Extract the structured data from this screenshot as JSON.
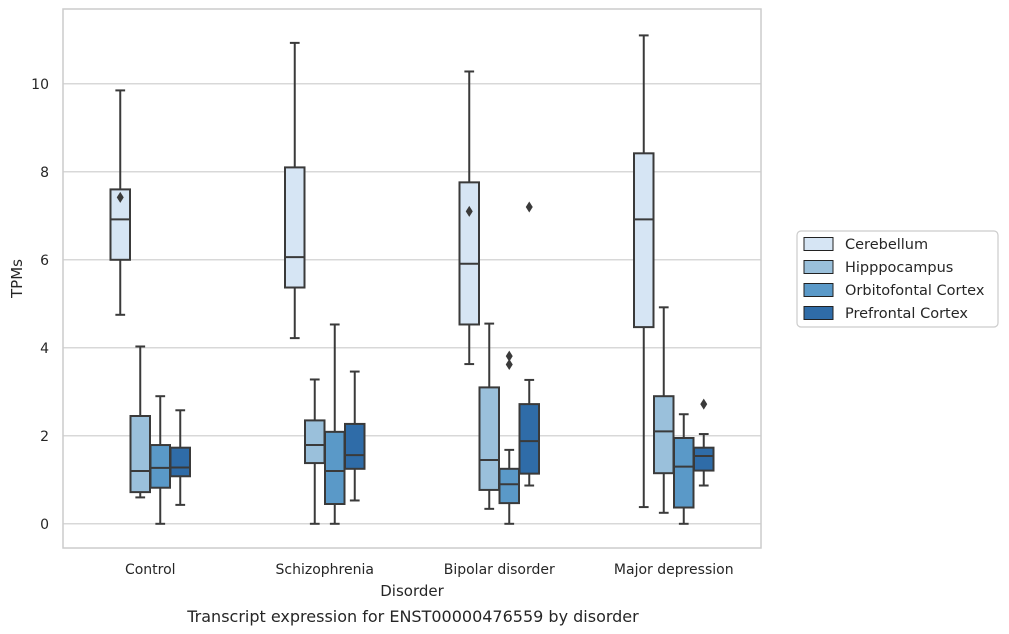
{
  "chart_data": {
    "type": "box",
    "title": "",
    "caption": "Transcript expression for ENST00000476559 by disorder",
    "xlabel": "Disorder",
    "ylabel": "TPMs",
    "ylim": [
      -0.55,
      11.7
    ],
    "yticks": [
      0,
      2,
      4,
      6,
      8,
      10
    ],
    "grid": "horizontal",
    "legend_position": "right",
    "categories": [
      "Control",
      "Schizophrenia",
      "Bipolar disorder",
      "Major depression"
    ],
    "series": [
      {
        "name": "Cerebellum",
        "color": "#d6e5f4",
        "boxes": [
          {
            "whisker_low": 4.75,
            "q1": 6.0,
            "median": 6.92,
            "q3": 7.6,
            "whisker_high": 9.85,
            "outliers": [
              7.42
            ]
          },
          {
            "whisker_low": 4.22,
            "q1": 5.37,
            "median": 6.06,
            "q3": 8.1,
            "whisker_high": 10.93,
            "outliers": []
          },
          {
            "whisker_low": 3.63,
            "q1": 4.53,
            "median": 5.91,
            "q3": 7.76,
            "whisker_high": 10.28,
            "outliers": [
              7.1
            ]
          },
          {
            "whisker_low": 0.38,
            "q1": 4.47,
            "median": 6.92,
            "q3": 8.42,
            "whisker_high": 11.1,
            "outliers": []
          }
        ]
      },
      {
        "name": "Hipppocampus",
        "color": "#9ac0db",
        "boxes": [
          {
            "whisker_low": 0.6,
            "q1": 0.72,
            "median": 1.2,
            "q3": 2.45,
            "whisker_high": 4.03,
            "outliers": []
          },
          {
            "whisker_low": 0.0,
            "q1": 1.38,
            "median": 1.79,
            "q3": 2.35,
            "whisker_high": 3.28,
            "outliers": []
          },
          {
            "whisker_low": 0.34,
            "q1": 0.77,
            "median": 1.45,
            "q3": 3.1,
            "whisker_high": 4.55,
            "outliers": []
          },
          {
            "whisker_low": 0.25,
            "q1": 1.15,
            "median": 2.1,
            "q3": 2.9,
            "whisker_high": 4.92,
            "outliers": []
          }
        ]
      },
      {
        "name": "Orbitofontal Cortex",
        "color": "#5a99c8",
        "boxes": [
          {
            "whisker_low": 0.0,
            "q1": 0.82,
            "median": 1.27,
            "q3": 1.79,
            "whisker_high": 2.9,
            "outliers": []
          },
          {
            "whisker_low": 0.0,
            "q1": 0.45,
            "median": 1.2,
            "q3": 2.09,
            "whisker_high": 4.53,
            "outliers": []
          },
          {
            "whisker_low": 0.0,
            "q1": 0.47,
            "median": 0.9,
            "q3": 1.25,
            "whisker_high": 1.68,
            "outliers": [
              3.81,
              3.62
            ]
          },
          {
            "whisker_low": 0.0,
            "q1": 0.37,
            "median": 1.3,
            "q3": 1.95,
            "whisker_high": 2.49,
            "outliers": []
          }
        ]
      },
      {
        "name": "Prefrontal Cortex",
        "color": "#2f6ca8",
        "boxes": [
          {
            "whisker_low": 0.43,
            "q1": 1.08,
            "median": 1.28,
            "q3": 1.73,
            "whisker_high": 2.58,
            "outliers": []
          },
          {
            "whisker_low": 0.53,
            "q1": 1.25,
            "median": 1.56,
            "q3": 2.27,
            "whisker_high": 3.46,
            "outliers": []
          },
          {
            "whisker_low": 0.87,
            "q1": 1.14,
            "median": 1.88,
            "q3": 2.72,
            "whisker_high": 3.27,
            "outliers": [
              7.2
            ]
          },
          {
            "whisker_low": 0.87,
            "q1": 1.21,
            "median": 1.54,
            "q3": 1.73,
            "whisker_high": 2.04,
            "outliers": [
              2.72
            ]
          }
        ]
      }
    ]
  }
}
